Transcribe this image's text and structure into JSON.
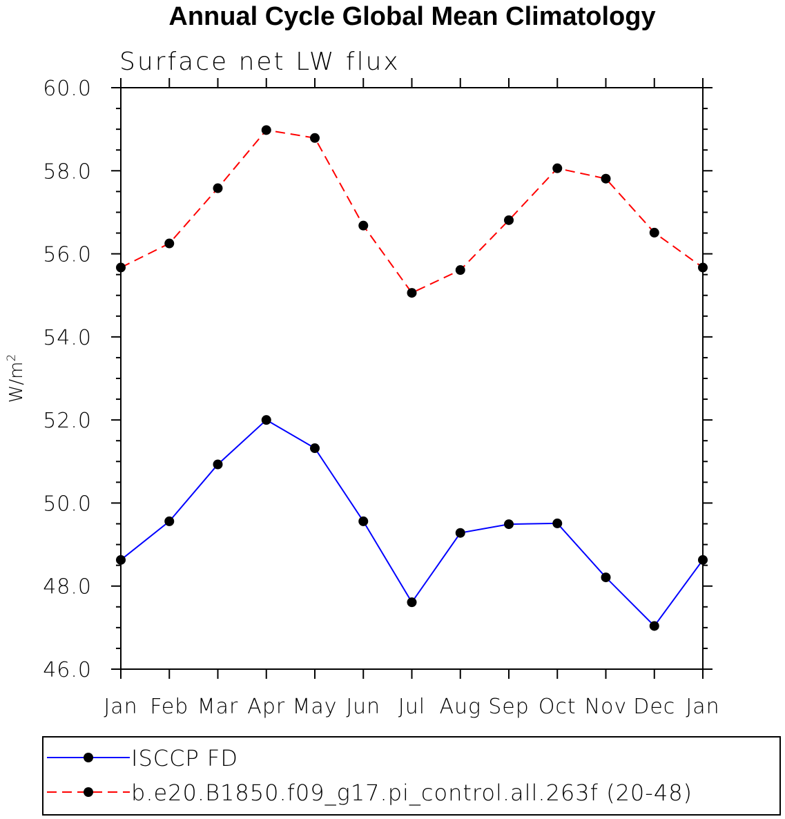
{
  "chart_data": {
    "type": "line",
    "title": "Annual Cycle Global Mean Climatology",
    "subtitle": "Surface net LW flux",
    "xlabel": "",
    "ylabel": "W/m",
    "ylabel_superscript": "2",
    "categories": [
      "Jan",
      "Feb",
      "Mar",
      "Apr",
      "May",
      "Jun",
      "Jul",
      "Aug",
      "Sep",
      "Oct",
      "Nov",
      "Dec",
      "Jan"
    ],
    "ylim": [
      46.0,
      60.0
    ],
    "yticks": [
      "46.0",
      "48.0",
      "50.0",
      "52.0",
      "54.0",
      "56.0",
      "58.0",
      "60.0"
    ],
    "grid": false,
    "legend_position": "bottom",
    "series": [
      {
        "name": "ISCCP FD",
        "color": "#0000ff",
        "dash": "solid",
        "marker": "filled-circle",
        "values": [
          48.63,
          49.56,
          50.93,
          52.0,
          51.32,
          49.56,
          47.61,
          49.28,
          49.49,
          49.51,
          48.21,
          47.04,
          48.63
        ]
      },
      {
        "name": "b.e20.B1850.f09_g17.pi_control.all.263f (20-48)",
        "color": "#ff0000",
        "dash": "dashed",
        "marker": "filled-circle",
        "values": [
          55.67,
          56.25,
          57.58,
          58.98,
          58.79,
          56.68,
          55.06,
          55.61,
          56.81,
          58.06,
          57.81,
          56.51,
          55.67
        ]
      }
    ]
  }
}
